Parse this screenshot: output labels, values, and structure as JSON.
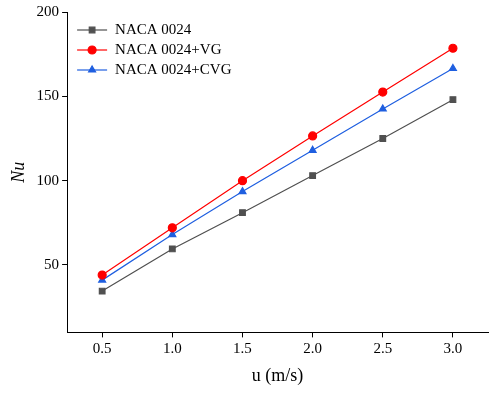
{
  "chart_data": {
    "type": "line",
    "x_label": "u (m/s)",
    "y_label": "Nu",
    "x": [
      0.5,
      1.0,
      1.5,
      2.0,
      2.5,
      3.0
    ],
    "series": [
      {
        "name": "NACA 0024",
        "color": "#505050",
        "marker": "square",
        "values": [
          34.5,
          59.5,
          81,
          103,
          125,
          148
        ]
      },
      {
        "name": "NACA 0024+VG",
        "color": "#ff0000",
        "marker": "circle",
        "values": [
          44,
          72,
          100,
          126.5,
          152.5,
          178.5
        ]
      },
      {
        "name": "NACA 0024+CVG",
        "color": "#1f5fe0",
        "marker": "triangle",
        "values": [
          41,
          68,
          93.5,
          118,
          142.5,
          166.5
        ]
      }
    ],
    "xlim": [
      0.25,
      3.25
    ],
    "xticks": [
      {
        "value": 0.5,
        "label": "0.5"
      },
      {
        "value": 1.0,
        "label": "1.0"
      },
      {
        "value": 1.5,
        "label": "1.5"
      },
      {
        "value": 2.0,
        "label": "2.0"
      },
      {
        "value": 2.5,
        "label": "2.5"
      },
      {
        "value": 3.0,
        "label": "3.0"
      }
    ],
    "ylim": [
      10,
      200
    ],
    "yticks": [
      50,
      100,
      150,
      200
    ],
    "grid": false,
    "legend": "upper left"
  }
}
